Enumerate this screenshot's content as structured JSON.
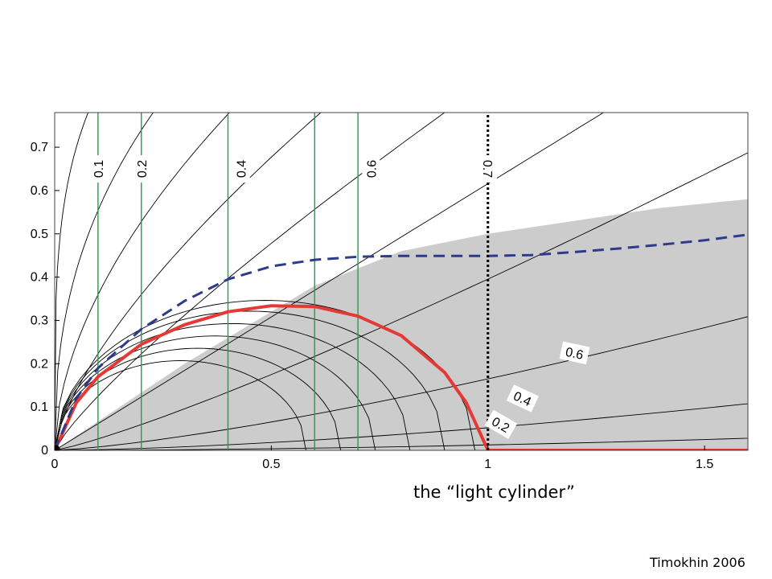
{
  "chart_data": {
    "type": "line",
    "title": "",
    "xlabel": "",
    "ylabel": "",
    "xlim": [
      0,
      1.6
    ],
    "ylim": [
      0,
      0.78
    ],
    "grid": false,
    "x_ticks": [
      0,
      0.5,
      1,
      1.5
    ],
    "x_tick_labels": [
      "0",
      "0.5",
      "1",
      "1.5"
    ],
    "y_ticks": [
      0,
      0.1,
      0.2,
      0.3,
      0.4,
      0.5,
      0.6,
      0.7
    ],
    "y_tick_labels": [
      "0",
      "0.1",
      "0.2",
      "0.3",
      "0.4",
      "0.5",
      "0.6",
      "0.7"
    ],
    "light_cylinder_x": 1.0,
    "shaded_region_boundary": {
      "x": [
        0,
        0.3,
        0.6,
        0.8,
        1.0,
        1.2,
        1.4,
        1.6
      ],
      "y": [
        0,
        0.2,
        0.38,
        0.46,
        0.5,
        0.53,
        0.56,
        0.58
      ]
    },
    "series": [
      {
        "name": "",
        "color": "#e53935",
        "role": "last closed field line (separatrix)",
        "x": [
          0,
          0.05,
          0.1,
          0.2,
          0.3,
          0.4,
          0.5,
          0.6,
          0.7,
          0.8,
          0.9,
          0.95,
          1.0,
          1.6
        ],
        "y": [
          0,
          0.11,
          0.17,
          0.245,
          0.29,
          0.32,
          0.334,
          0.332,
          0.31,
          0.265,
          0.18,
          0.11,
          0,
          0
        ]
      },
      {
        "name": "",
        "color": "#2e3a8c",
        "style": "dashed",
        "x": [
          0,
          0.05,
          0.1,
          0.2,
          0.3,
          0.4,
          0.5,
          0.6,
          0.7,
          0.8,
          0.9,
          1.0,
          1.1,
          1.2,
          1.3,
          1.4,
          1.5,
          1.6
        ],
        "y": [
          0,
          0.12,
          0.19,
          0.28,
          0.345,
          0.395,
          0.425,
          0.44,
          0.447,
          0.449,
          0.449,
          0.449,
          0.451,
          0.458,
          0.466,
          0.475,
          0.485,
          0.498
        ]
      }
    ],
    "contour_labels": [
      {
        "text": "0.1",
        "x": 0.1,
        "y": 0.65,
        "rotation": -90
      },
      {
        "text": "0.2",
        "x": 0.2,
        "y": 0.65,
        "rotation": -90
      },
      {
        "text": "0.4",
        "x": 0.43,
        "y": 0.65,
        "rotation": -90
      },
      {
        "text": "0.6",
        "x": 0.73,
        "y": 0.65,
        "rotation": -90
      },
      {
        "text": "0.7",
        "x": 1.0,
        "y": 0.65,
        "rotation": 90
      },
      {
        "text": "0.6",
        "x": 1.2,
        "y": 0.225,
        "rotation": 12
      },
      {
        "text": "0.4",
        "x": 1.08,
        "y": 0.12,
        "rotation": 25
      },
      {
        "text": "0.2",
        "x": 1.03,
        "y": 0.06,
        "rotation": 30
      }
    ],
    "annotation": "the “light cylinder”"
  },
  "credit": "Timokhin 2006",
  "colors": {
    "shade": "#cccccc",
    "field_lines": "#000000",
    "contours": "#1f9e49",
    "separatrix": "#e53935",
    "dashed": "#2e3a8c"
  }
}
